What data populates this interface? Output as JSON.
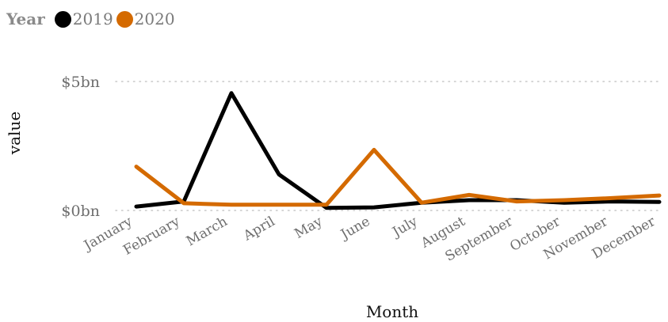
{
  "chart_data": {
    "type": "line",
    "legend": {
      "title": "Year",
      "placement": "top-left"
    },
    "xlabel": "Month",
    "ylabel": "value",
    "categories": [
      "January",
      "February",
      "March",
      "April",
      "May",
      "June",
      "July",
      "August",
      "September",
      "October",
      "November",
      "December"
    ],
    "y_ticks": [
      {
        "value": 0,
        "label": "$0bn"
      },
      {
        "value": 5,
        "label": "$5bn"
      }
    ],
    "ylim": [
      0,
      5
    ],
    "grid": "horizontal dotted",
    "series": [
      {
        "name": "2019",
        "color": "#000000",
        "values": [
          0.15,
          0.35,
          4.55,
          1.4,
          0.1,
          0.12,
          0.3,
          0.4,
          0.4,
          0.3,
          0.35,
          0.33
        ]
      },
      {
        "name": "2020",
        "color": "#d46a00",
        "values": [
          1.7,
          0.28,
          0.22,
          0.22,
          0.22,
          2.35,
          0.3,
          0.6,
          0.35,
          0.4,
          0.48,
          0.58
        ]
      }
    ]
  }
}
